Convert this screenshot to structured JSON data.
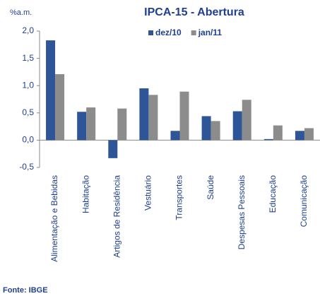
{
  "chart_data": {
    "type": "bar",
    "title": "IPCA-15 - Abertura",
    "y_label": "%a.m.",
    "source": "Fonte: IBGE",
    "categories": [
      "Alimentação e Bebidas",
      "Habitação",
      "Artigos de Residência",
      "Vestuário",
      "Transportes",
      "Saúde",
      "Despesas Pessoais",
      "Educação",
      "Comunicação"
    ],
    "series": [
      {
        "name": "dez/10",
        "color": "#2e5597",
        "values": [
          1.83,
          0.52,
          -0.33,
          0.95,
          0.17,
          0.44,
          0.53,
          0.02,
          0.17
        ]
      },
      {
        "name": "jan/11",
        "color": "#8c8c8c",
        "values": [
          1.21,
          0.6,
          0.58,
          0.83,
          0.89,
          0.35,
          0.74,
          0.27,
          0.22
        ]
      }
    ],
    "ylim": [
      -0.5,
      2.0
    ],
    "yticks": [
      {
        "value": -0.5,
        "label": "-0,5"
      },
      {
        "value": 0,
        "label": "0,0"
      },
      {
        "value": 0.5,
        "label": "0,5"
      },
      {
        "value": 1.0,
        "label": "1,0"
      },
      {
        "value": 1.5,
        "label": "1,5"
      },
      {
        "value": 2.0,
        "label": "2,0"
      }
    ],
    "legend": "top-right",
    "grid": false
  }
}
